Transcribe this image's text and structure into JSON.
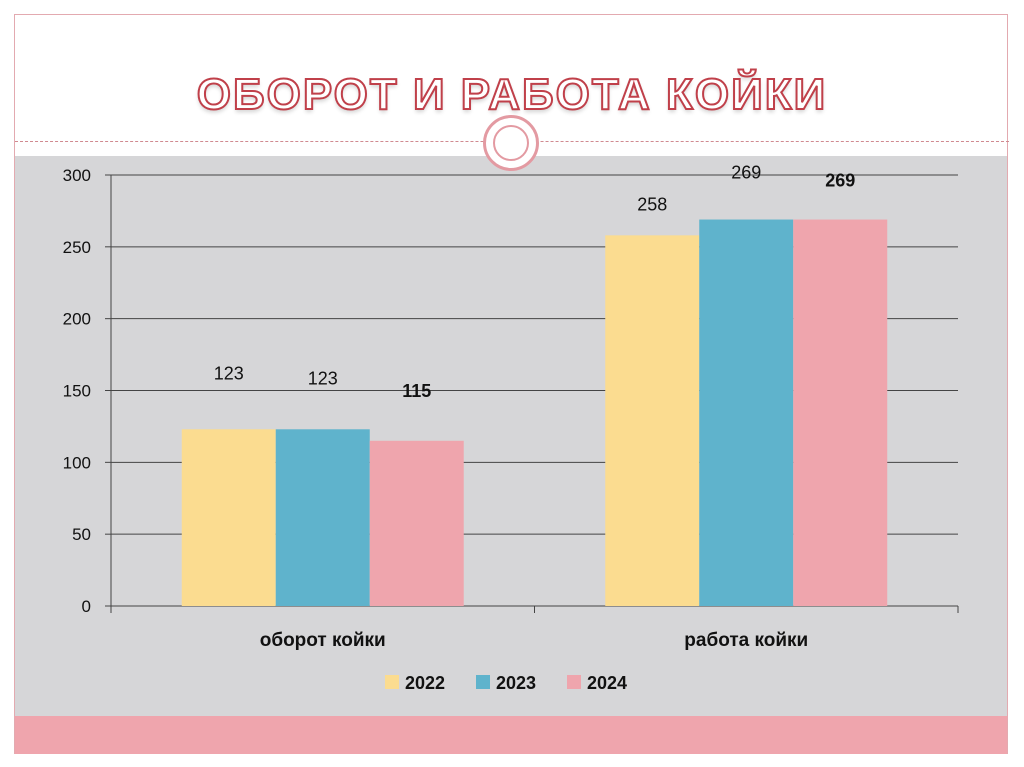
{
  "title": "ОБОРОТ И РАБОТА КОЙКИ",
  "chart_data": {
    "type": "bar",
    "categories": [
      "оборот койки",
      "работа койки"
    ],
    "series": [
      {
        "name": "2022",
        "values": [
          123,
          258
        ],
        "color": "#fbdc90",
        "labels": [
          "123",
          "258"
        ],
        "label_bold": false
      },
      {
        "name": "2023",
        "values": [
          123,
          269
        ],
        "color": "#5fb3cc",
        "labels": [
          "123",
          "269"
        ],
        "label_bold": false
      },
      {
        "name": "2024",
        "values": [
          115,
          269
        ],
        "color": "#efa5ad",
        "labels": [
          "115",
          "269"
        ],
        "label_bold": true
      }
    ],
    "ylim": [
      0,
      300
    ],
    "yticks": [
      "0",
      "50",
      "100",
      "150",
      "200",
      "250",
      "300"
    ],
    "grid": true,
    "legend": "bottom",
    "xlabel": "",
    "ylabel": ""
  }
}
